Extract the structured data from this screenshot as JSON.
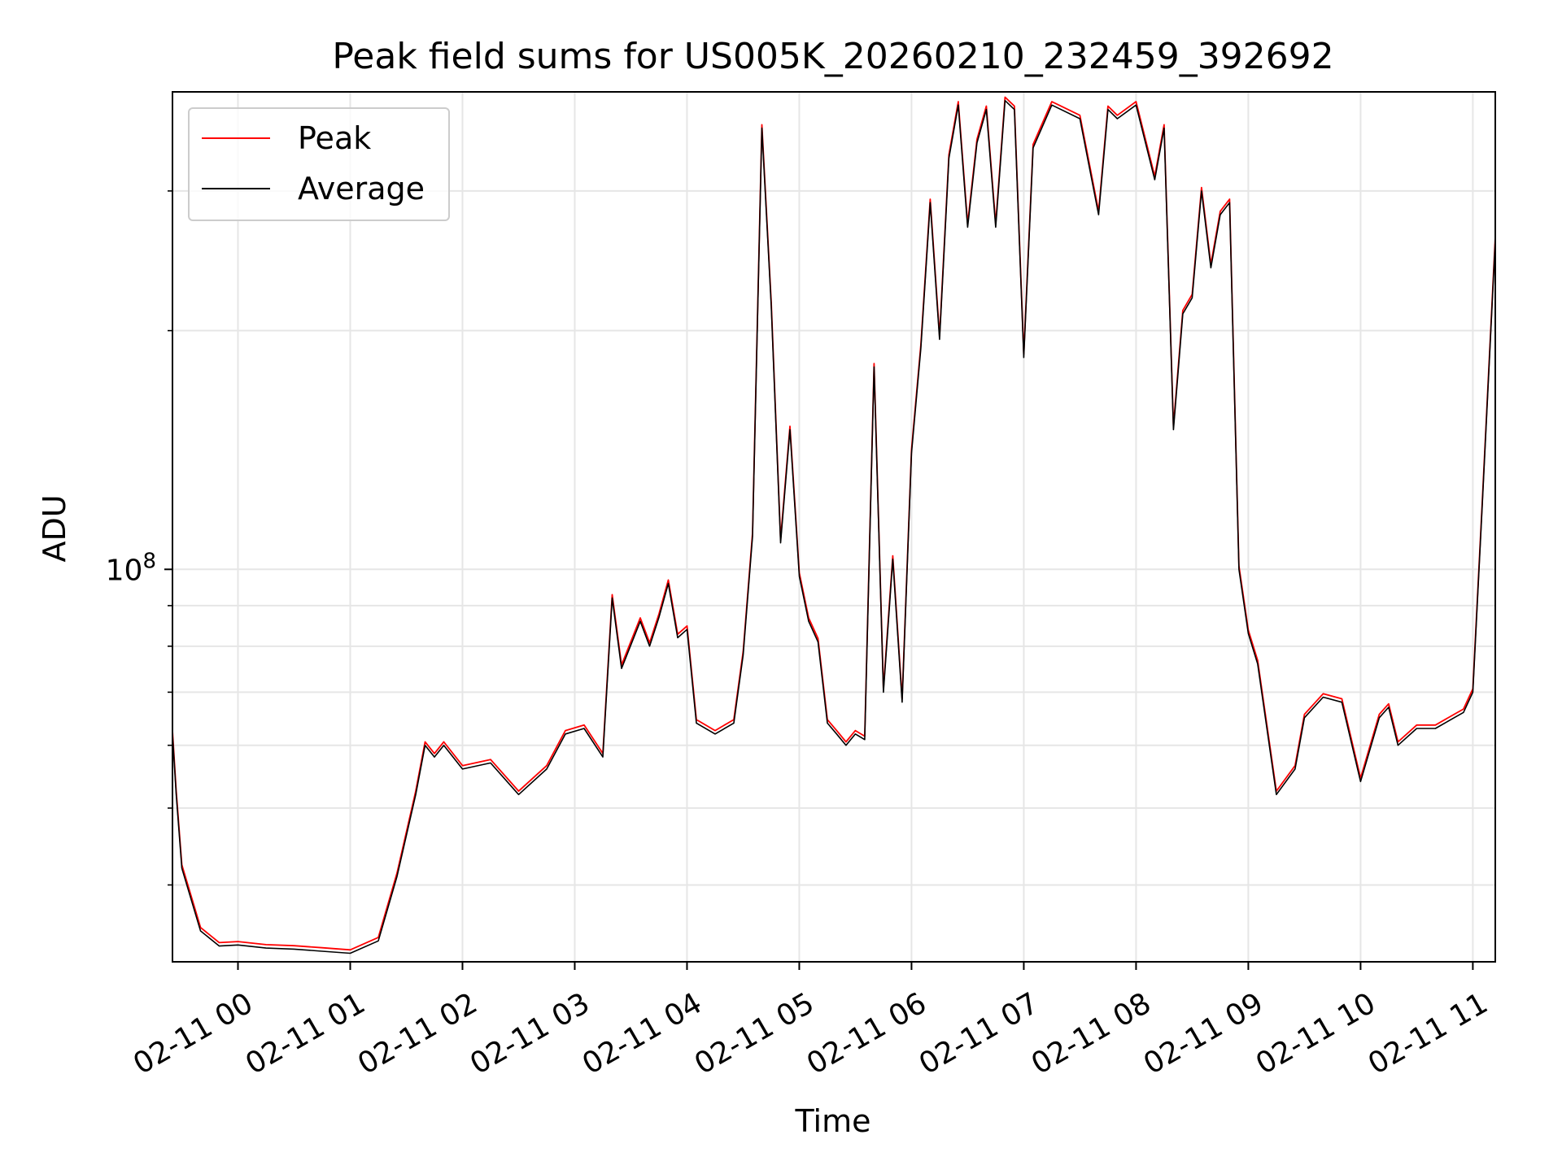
{
  "chart_data": {
    "type": "line",
    "title": "Peak field sums for US005K_20260210_232459_392692",
    "xlabel": "Time",
    "ylabel": "ADU",
    "yscale": "log",
    "ylim": [
      32000000,
      400000000
    ],
    "y_major_tick": {
      "value": 100000000,
      "base": "10",
      "exponent": "8"
    },
    "y_minor_ticks": [
      40000000,
      50000000,
      60000000,
      70000000,
      80000000,
      90000000,
      200000000,
      300000000
    ],
    "xlim": [
      "2026-02-10 23:25",
      "2026-02-11 11:12"
    ],
    "x_ticks": [
      {
        "value": "2026-02-11 00:00",
        "label": "02-11 00"
      },
      {
        "value": "2026-02-11 01:00",
        "label": "02-11 01"
      },
      {
        "value": "2026-02-11 02:00",
        "label": "02-11 02"
      },
      {
        "value": "2026-02-11 03:00",
        "label": "02-11 03"
      },
      {
        "value": "2026-02-11 04:00",
        "label": "02-11 04"
      },
      {
        "value": "2026-02-11 05:00",
        "label": "02-11 05"
      },
      {
        "value": "2026-02-11 06:00",
        "label": "02-11 06"
      },
      {
        "value": "2026-02-11 07:00",
        "label": "02-11 07"
      },
      {
        "value": "2026-02-11 08:00",
        "label": "02-11 08"
      },
      {
        "value": "2026-02-11 09:00",
        "label": "02-11 09"
      },
      {
        "value": "2026-02-11 10:00",
        "label": "02-11 10"
      },
      {
        "value": "2026-02-11 11:00",
        "label": "02-11 11"
      }
    ],
    "grid": true,
    "legend": "upper-left",
    "series": [
      {
        "name": "Peak",
        "color": "#ff0000"
      },
      {
        "name": "Average",
        "color": "#000000"
      }
    ],
    "x": [
      "2026-02-10 23:25",
      "2026-02-10 23:27",
      "2026-02-10 23:30",
      "2026-02-10 23:40",
      "2026-02-10 23:50",
      "2026-02-11 00:00",
      "2026-02-11 00:15",
      "2026-02-11 00:30",
      "2026-02-11 00:45",
      "2026-02-11 01:00",
      "2026-02-11 01:15",
      "2026-02-11 01:25",
      "2026-02-11 01:35",
      "2026-02-11 01:40",
      "2026-02-11 01:45",
      "2026-02-11 01:50",
      "2026-02-11 02:00",
      "2026-02-11 02:15",
      "2026-02-11 02:30",
      "2026-02-11 02:45",
      "2026-02-11 02:55",
      "2026-02-11 03:05",
      "2026-02-11 03:15",
      "2026-02-11 03:20",
      "2026-02-11 03:25",
      "2026-02-11 03:35",
      "2026-02-11 03:40",
      "2026-02-11 03:45",
      "2026-02-11 03:50",
      "2026-02-11 03:55",
      "2026-02-11 04:00",
      "2026-02-11 04:05",
      "2026-02-11 04:15",
      "2026-02-11 04:25",
      "2026-02-11 04:30",
      "2026-02-11 04:35",
      "2026-02-11 04:40",
      "2026-02-11 04:45",
      "2026-02-11 04:50",
      "2026-02-11 04:55",
      "2026-02-11 05:00",
      "2026-02-11 05:05",
      "2026-02-11 05:10",
      "2026-02-11 05:15",
      "2026-02-11 05:20",
      "2026-02-11 05:25",
      "2026-02-11 05:30",
      "2026-02-11 05:35",
      "2026-02-11 05:40",
      "2026-02-11 05:45",
      "2026-02-11 05:50",
      "2026-02-11 05:55",
      "2026-02-11 06:00",
      "2026-02-11 06:05",
      "2026-02-11 06:10",
      "2026-02-11 06:15",
      "2026-02-11 06:20",
      "2026-02-11 06:25",
      "2026-02-11 06:30",
      "2026-02-11 06:35",
      "2026-02-11 06:40",
      "2026-02-11 06:45",
      "2026-02-11 06:50",
      "2026-02-11 06:55",
      "2026-02-11 07:00",
      "2026-02-11 07:05",
      "2026-02-11 07:15",
      "2026-02-11 07:30",
      "2026-02-11 07:40",
      "2026-02-11 07:45",
      "2026-02-11 07:50",
      "2026-02-11 08:00",
      "2026-02-11 08:10",
      "2026-02-11 08:15",
      "2026-02-11 08:20",
      "2026-02-11 08:25",
      "2026-02-11 08:30",
      "2026-02-11 08:35",
      "2026-02-11 08:40",
      "2026-02-11 08:45",
      "2026-02-11 08:50",
      "2026-02-11 08:55",
      "2026-02-11 09:00",
      "2026-02-11 09:05",
      "2026-02-11 09:15",
      "2026-02-11 09:25",
      "2026-02-11 09:30",
      "2026-02-11 09:40",
      "2026-02-11 09:50",
      "2026-02-11 10:00",
      "2026-02-11 10:10",
      "2026-02-11 10:15",
      "2026-02-11 10:20",
      "2026-02-11 10:30",
      "2026-02-11 10:40",
      "2026-02-11 10:50",
      "2026-02-11 10:55",
      "2026-02-11 11:00",
      "2026-02-11 11:05",
      "2026-02-11 11:12"
    ],
    "values": [
      62000000,
      52000000,
      42000000,
      35000000,
      33500000,
      33600000,
      33300000,
      33200000,
      33000000,
      32800000,
      34000000,
      41000000,
      52000000,
      60000000,
      58000000,
      60000000,
      56000000,
      57000000,
      52000000,
      56000000,
      62000000,
      63000000,
      58000000,
      92000000,
      75000000,
      86000000,
      80000000,
      87000000,
      96000000,
      82000000,
      84000000,
      64000000,
      62000000,
      64000000,
      78000000,
      110000000,
      360000000,
      215000000,
      108000000,
      150000000,
      98000000,
      86000000,
      81000000,
      64000000,
      62000000,
      60000000,
      62000000,
      61000000,
      180000000,
      70000000,
      103000000,
      68000000,
      140000000,
      190000000,
      290000000,
      195000000,
      330000000,
      385000000,
      270000000,
      345000000,
      380000000,
      270000000,
      390000000,
      380000000,
      185000000,
      340000000,
      385000000,
      370000000,
      280000000,
      380000000,
      370000000,
      385000000,
      310000000,
      360000000,
      150000000,
      210000000,
      220000000,
      300000000,
      240000000,
      280000000,
      290000000,
      100000000,
      83000000,
      76000000,
      52000000,
      56000000,
      65000000,
      69000000,
      68000000,
      54000000,
      65000000,
      67000000,
      60000000,
      63000000,
      63000000,
      65000000,
      66000000,
      70000000,
      120000000,
      260000000
    ]
  }
}
